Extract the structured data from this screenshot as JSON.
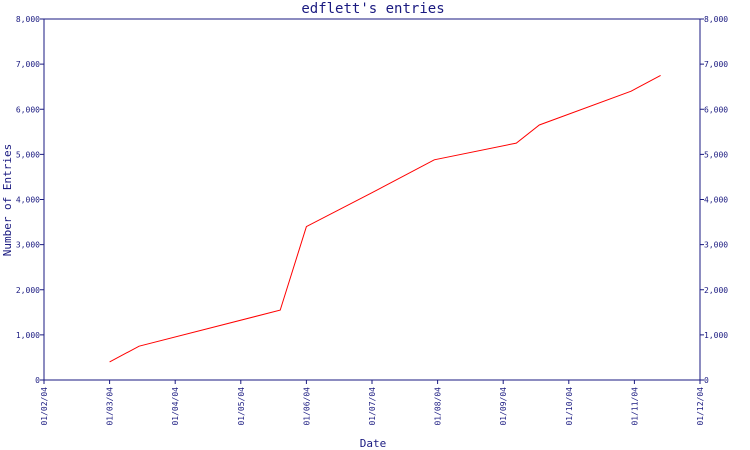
{
  "chart_data": {
    "type": "line",
    "title": "edflett's entries",
    "xlabel": "Date",
    "ylabel": "Number of Entries",
    "x_ticks": [
      "01/02/04",
      "01/03/04",
      "01/04/04",
      "01/05/04",
      "01/06/04",
      "01/07/04",
      "01/08/04",
      "01/09/04",
      "01/10/04",
      "01/11/04",
      "01/12/04"
    ],
    "y_ticks": [
      "0",
      "1,000",
      "2,000",
      "3,000",
      "4,000",
      "5,000",
      "6,000",
      "7,000",
      "8,000"
    ],
    "xlim": [
      "2004-01-02",
      "2004-01-12"
    ],
    "ylim": [
      0,
      8000
    ],
    "right_axis": true,
    "grid": false,
    "line_color": "#ff0000",
    "series": [
      {
        "x": [
          "2004-01-03",
          "2004-01-03.45",
          "2004-01-05.6",
          "2004-01-06",
          "2004-01-07",
          "2004-01-07.95",
          "2004-01-09.2",
          "2004-01-09.55",
          "2004-01-10.95",
          "2004-01-11.4"
        ],
        "values": [
          400,
          750,
          1550,
          3400,
          4150,
          4880,
          5250,
          5650,
          6400,
          6750
        ]
      }
    ]
  }
}
